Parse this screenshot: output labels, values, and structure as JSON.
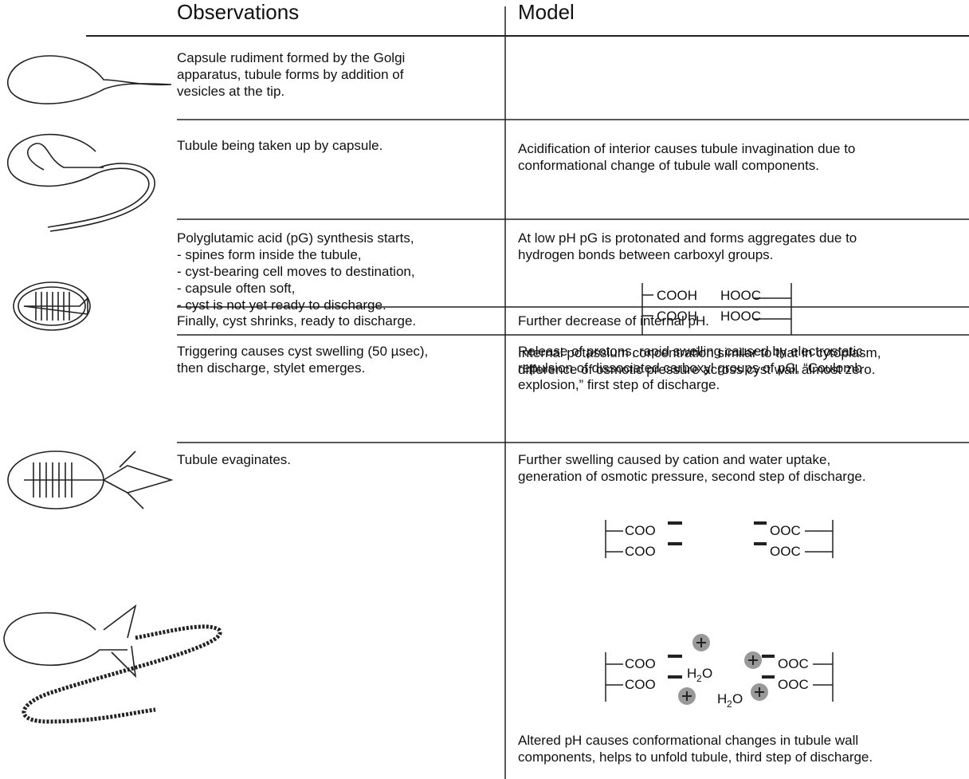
{
  "header": {
    "observations": "Observations",
    "model": "Model"
  },
  "rows": [
    {
      "observation": [
        "Capsule rudiment formed by the Golgi",
        "apparatus, tubule forms by addition of",
        "vesicles at the tip."
      ]
    },
    {
      "observation": [
        "Tubule being taken up by capsule."
      ],
      "model": [
        "Acidification of interior causes tubule invagination due to",
        "conformational change of tubule wall components."
      ]
    },
    {
      "observation": [
        "Polyglutamic acid (pG) synthesis starts,",
        "- spines form inside the tubule,",
        "- cyst-bearing cell moves to destination,",
        "- capsule often soft,",
        "- cyst is not yet ready to discharge."
      ],
      "model": [
        "At low pH pG is protonated and forms aggregates due to",
        "hydrogen bonds between carboxyl groups."
      ],
      "formula": {
        "left": "COOH",
        "right": "HOOC"
      },
      "model_after": [
        "Internal potassium concentration similar to that in cytoplasm,",
        "difference of osmotic pressure across cyst wall almost zero."
      ]
    },
    {
      "observation": [
        "Finally, cyst shrinks, ready to discharge."
      ],
      "model": [
        "Further decrease of internal pH."
      ]
    },
    {
      "observation": [
        "Triggering causes cyst swelling (50 µsec),",
        "then discharge, stylet emerges."
      ],
      "model": [
        "Release of protons, rapid swelling caused by electrostatic",
        "repulsion of dissociated carboxyl groups of pG, “Coulomb",
        "explosion,” first step of discharge."
      ],
      "formula": {
        "left": "COO",
        "right": "OOC"
      }
    },
    {
      "observation": [
        "Tubule evaginates."
      ],
      "model": [
        "Further swelling caused by cation and water uptake,",
        "generation of osmotic pressure, second step of discharge."
      ],
      "formula": {
        "left": "COO",
        "right": "OOC",
        "water": {
          "base": "H",
          "sub": "2",
          "end": "O"
        }
      },
      "model_after": [
        "Altered pH causes conformational changes in tubule wall",
        "components, helps to unfold tubule, third step of discharge."
      ]
    }
  ]
}
